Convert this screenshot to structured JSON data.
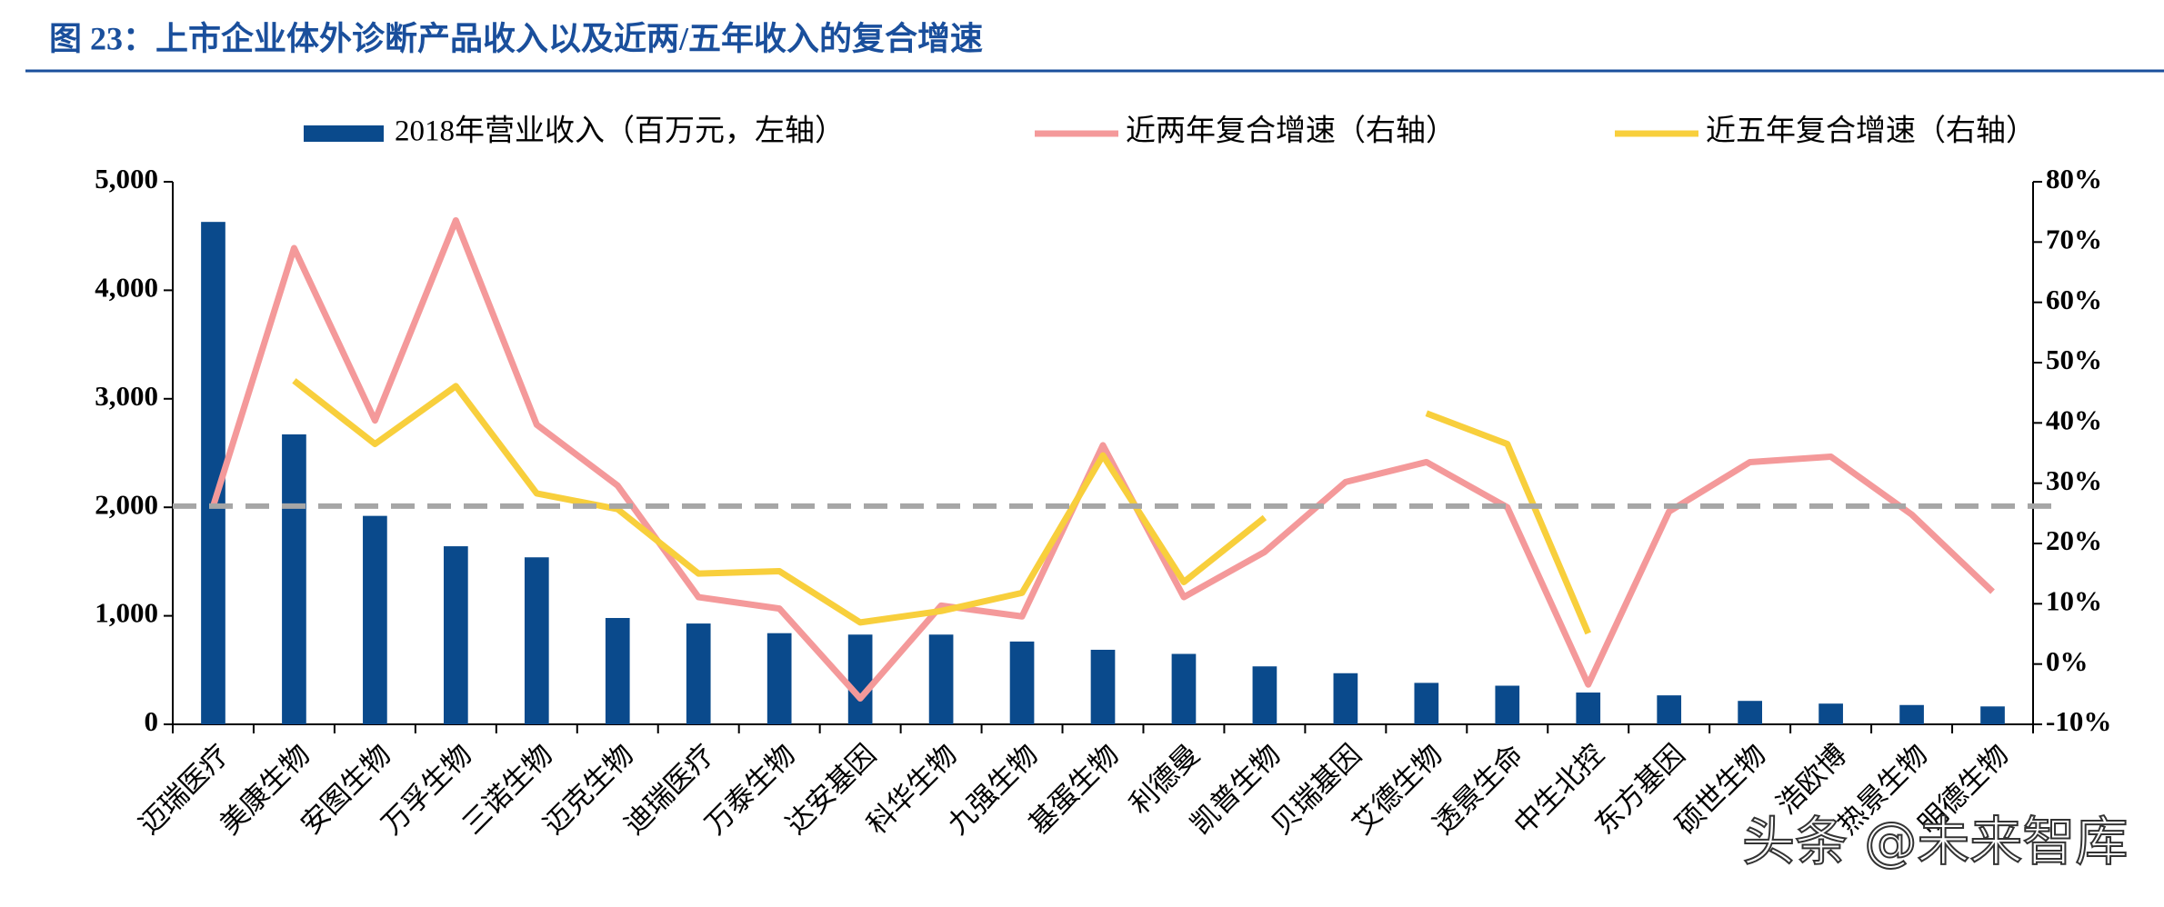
{
  "chart_data": {
    "type": "bar",
    "title": "图 23：上市企业体外诊断产品收入以及近两/五年收入的复合增速",
    "watermark": "头条 @未来智库",
    "categories": [
      "迈瑞医疗",
      "美康生物",
      "安图生物",
      "万孚生物",
      "三诺生物",
      "迈克生物",
      "迪瑞医疗",
      "万泰生物",
      "达安基因",
      "科华生物",
      "九强生物",
      "基蛋生物",
      "利德曼",
      "凯普生物",
      "贝瑞基因",
      "艾德生物",
      "透景生命",
      "中生北控",
      "东方基因",
      "硕世生物",
      "浩欧博",
      "热景生物",
      "明德生物"
    ],
    "series": [
      {
        "name": "2018年营业收入（百万元，左轴）",
        "type": "bar",
        "color": "#0a4a8c",
        "values": [
          4630,
          2672,
          1921,
          1641,
          1539,
          980,
          929,
          840,
          827,
          827,
          763,
          687,
          649,
          534,
          471,
          382,
          356,
          293,
          267,
          216,
          191,
          178,
          165
        ]
      },
      {
        "name": "近两年复合增速（右轴）",
        "type": "line",
        "axis": "y2",
        "color": "#f4999a",
        "values": [
          26.2,
          69.0,
          40.4,
          73.6,
          39.7,
          29.6,
          11.1,
          9.2,
          -5.7,
          9.7,
          7.9,
          36.3,
          11.1,
          18.6,
          30.2,
          33.5,
          26.0,
          -3.4,
          25.3,
          33.5,
          34.4,
          24.8,
          12.0
        ]
      },
      {
        "name": "近五年复合增速（右轴）",
        "type": "line",
        "axis": "y2",
        "color": "#f8cf3c",
        "values": [
          null,
          47.0,
          36.5,
          46.1,
          28.3,
          25.7,
          15.0,
          15.4,
          6.9,
          8.8,
          11.8,
          34.6,
          13.6,
          24.3,
          null,
          41.6,
          36.5,
          5.1,
          null,
          null,
          null,
          null,
          null
        ]
      }
    ],
    "reference_line": 26.2,
    "reference_line_color": "#a6a6a6",
    "ylim": [
      0,
      5000
    ],
    "yticks": [
      0,
      {
        "value": 1000,
        "label": "1,000"
      },
      {
        "value": 2000,
        "label": "2,000"
      },
      {
        "value": 3000,
        "label": "3,000"
      },
      {
        "value": 4000,
        "label": "4,000"
      },
      {
        "value": 5000,
        "label": "5,000"
      }
    ],
    "y2lim": [
      -10,
      80
    ],
    "y2ticks": [
      {
        "value": -10,
        "label": "-10%"
      },
      {
        "value": 0,
        "label": "0%"
      },
      {
        "value": 10,
        "label": "10%"
      },
      {
        "value": 20,
        "label": "20%"
      },
      {
        "value": 30,
        "label": "30%"
      },
      {
        "value": 40,
        "label": "40%"
      },
      {
        "value": 50,
        "label": "50%"
      },
      {
        "value": 60,
        "label": "60%"
      },
      {
        "value": 70,
        "label": "70%"
      },
      {
        "value": 80,
        "label": "80%"
      }
    ],
    "grid": false
  }
}
